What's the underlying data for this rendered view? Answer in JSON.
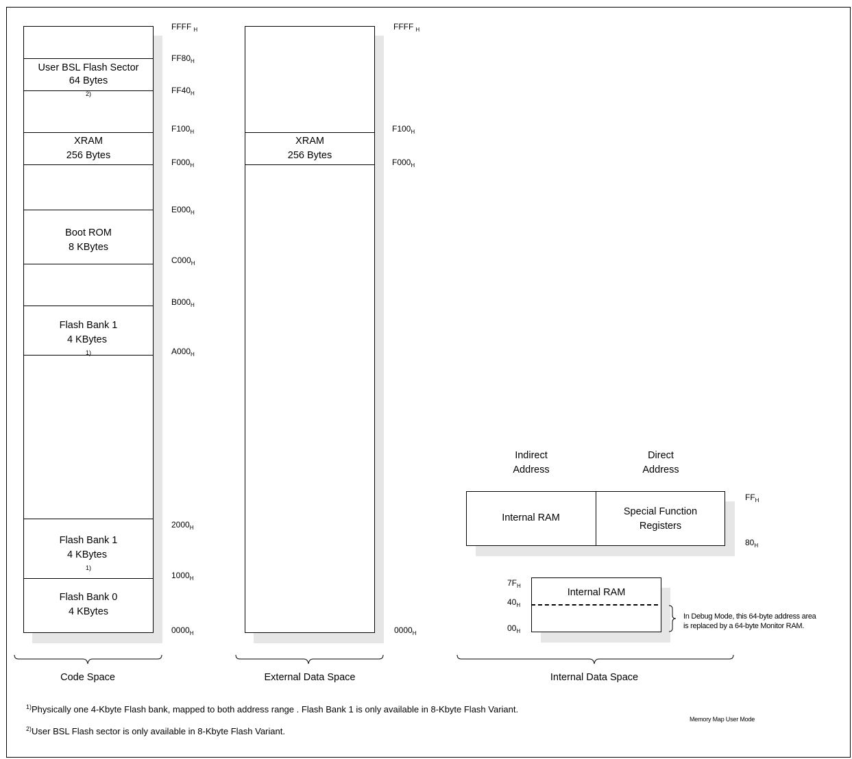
{
  "code_space": {
    "caption": "Code Space",
    "blocks": [
      {
        "line1": "User BSL Flash Sector",
        "line2": "64 Bytes",
        "note": "2)"
      },
      {
        "line1": "XRAM",
        "line2": "256 Bytes",
        "note": ""
      },
      {
        "line1": "Boot ROM",
        "line2": "8 KBytes",
        "note": ""
      },
      {
        "line1": "Flash Bank 1",
        "line2": "4 KBytes ",
        "note": "1)"
      },
      {
        "line1": "Flash Bank 1",
        "line2": "4 KBytes ",
        "note": "1)"
      },
      {
        "line1": "Flash Bank 0",
        "line2": "4 KBytes",
        "note": ""
      }
    ],
    "addresses": [
      "FFFF",
      "FF80",
      "FF40",
      "F100",
      "F000",
      "E000",
      "C000",
      "B000",
      "A000",
      "2000",
      "1000",
      "0000"
    ],
    "suffix": "H"
  },
  "external_data_space": {
    "caption": "External Data Space",
    "blocks": [
      {
        "line1": "XRAM",
        "line2": "256 Bytes"
      }
    ],
    "addresses": [
      "FFFF",
      "F100",
      "F000",
      "0000"
    ],
    "suffix": "H"
  },
  "internal_data_space": {
    "caption": "Internal Data Space",
    "header_indirect": {
      "line1": "Indirect",
      "line2": "Address"
    },
    "header_direct": {
      "line1": "Direct",
      "line2": "Address"
    },
    "upper_left": "Internal RAM",
    "upper_right": {
      "line1": "Special Function",
      "line2": "Registers"
    },
    "lower": "Internal RAM",
    "upper_addresses": [
      "FF",
      "80"
    ],
    "lower_addresses": [
      "7F",
      "40",
      "00"
    ],
    "suffix": "H",
    "debug_note": {
      "line1": "In Debug Mode, this 64-byte address area",
      "line2": "is replaced by a 64-byte Monitor RAM."
    }
  },
  "footnotes": [
    {
      "mark": "1)",
      "text": "Physically one 4-Kbyte Flash bank, mapped to both address range . Flash Bank 1 is only available in 8-Kbyte Flash Variant."
    },
    {
      "mark": "2)",
      "text": "User BSL Flash sector is only available in 8-Kbyte Flash Variant."
    }
  ],
  "figure_label": "Memory Map User Mode"
}
